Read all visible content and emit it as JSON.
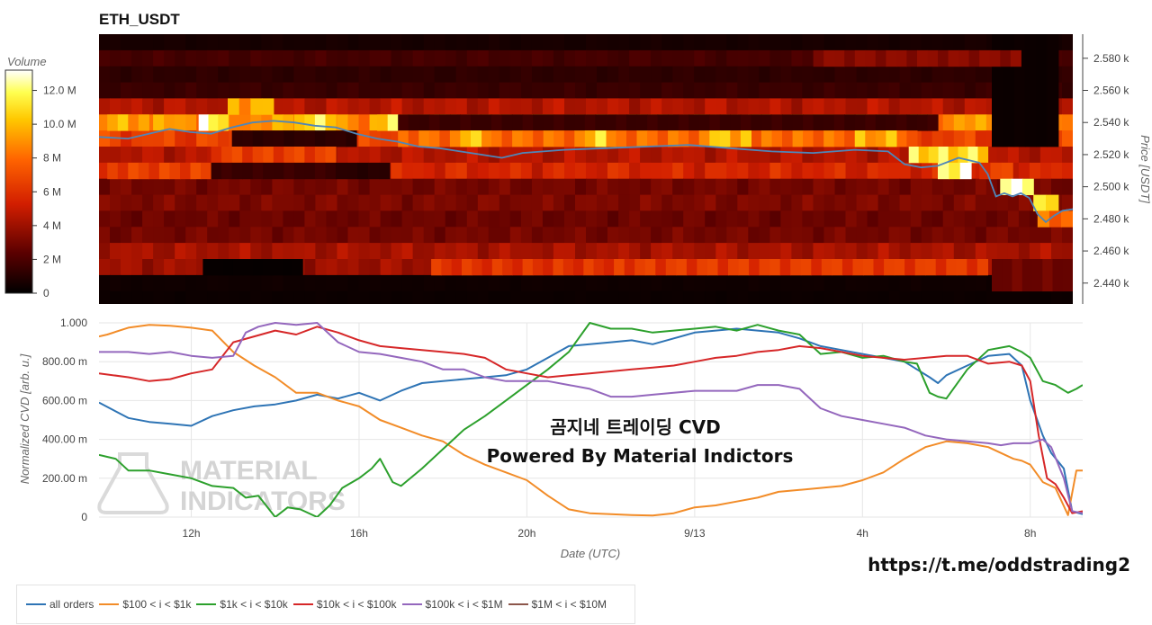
{
  "colors": {
    "all_orders": "#2e74b5",
    "b100_1k": "#f28c28",
    "b1k_10k": "#2ca02c",
    "b10k_100k": "#d62728",
    "b100k_1m": "#9467bd",
    "b1m_10m": "#8c564b",
    "price_line": "#4f86b8"
  },
  "watermark": {
    "text_line1": "곰지네 트레이딩 CVD",
    "text_line2": "Powered By Material Indictors",
    "logo_line1": "MATERIAL",
    "logo_line2": "INDICATORS",
    "url": "https://t.me/oddstrading2"
  },
  "chart_data": [
    {
      "type": "heatmap",
      "title": "ETH_USDT",
      "ylabel": "Price [USDT]",
      "ylim": [
        2427,
        2595
      ],
      "y_ticks": [
        {
          "value": 2580,
          "label": "2.580 k"
        },
        {
          "value": 2560,
          "label": "2.560 k"
        },
        {
          "value": 2540,
          "label": "2.540 k"
        },
        {
          "value": 2520,
          "label": "2.520 k"
        },
        {
          "value": 2500,
          "label": "2.500 k"
        },
        {
          "value": 2480,
          "label": "2.480 k"
        },
        {
          "value": 2460,
          "label": "2.460 k"
        },
        {
          "value": 2440,
          "label": "2.440 k"
        }
      ],
      "x_range_hours": [
        9.8,
        33.25
      ],
      "colorbar": {
        "title": "Volume",
        "range": [
          0,
          13.2
        ],
        "ticks": [
          {
            "value": 0,
            "label": "0"
          },
          {
            "value": 2,
            "label": "2 M"
          },
          {
            "value": 4,
            "label": "4 M"
          },
          {
            "value": 6,
            "label": "6 M"
          },
          {
            "value": 8,
            "label": "8 M"
          },
          {
            "value": 10,
            "label": "10.0 M"
          },
          {
            "value": 12,
            "label": "12.0 M"
          }
        ]
      },
      "bands": [
        {
          "y0": 2585,
          "y1": 2595,
          "v": 0.6
        },
        {
          "y0": 2575,
          "y1": 2585,
          "v": 1.8
        },
        {
          "y0": 2565,
          "y1": 2575,
          "v": 1.2
        },
        {
          "y0": 2555,
          "y1": 2565,
          "v": 1.5
        },
        {
          "y0": 2545,
          "y1": 2555,
          "v": 4.5
        },
        {
          "y0": 2535,
          "y1": 2545,
          "v": 9.0
        },
        {
          "y0": 2525,
          "y1": 2535,
          "v": 6.5
        },
        {
          "y0": 2515,
          "y1": 2525,
          "v": 4.5
        },
        {
          "y0": 2505,
          "y1": 2515,
          "v": 5.5
        },
        {
          "y0": 2495,
          "y1": 2505,
          "v": 3.0
        },
        {
          "y0": 2485,
          "y1": 2495,
          "v": 3.2
        },
        {
          "y0": 2475,
          "y1": 2485,
          "v": 2.8
        },
        {
          "y0": 2465,
          "y1": 2475,
          "v": 3.0
        },
        {
          "y0": 2455,
          "y1": 2465,
          "v": 4.2
        },
        {
          "y0": 2445,
          "y1": 2455,
          "v": 4.0
        },
        {
          "y0": 2435,
          "y1": 2445,
          "v": 0.4
        },
        {
          "y0": 2427,
          "y1": 2435,
          "v": 0.3
        }
      ],
      "patches": [
        {
          "x0": 10.0,
          "x1": 11.0,
          "y0": 2535,
          "y1": 2545,
          "v": 9.5
        },
        {
          "x0": 12.2,
          "x1": 12.9,
          "y0": 2535,
          "y1": 2545,
          "v": 12.0
        },
        {
          "x0": 12.9,
          "x1": 14.0,
          "y0": 2545,
          "y1": 2555,
          "v": 9.5
        },
        {
          "x0": 14.5,
          "x1": 15.5,
          "y0": 2535,
          "y1": 2545,
          "v": 11.0
        },
        {
          "x0": 16.5,
          "x1": 17.0,
          "y0": 2535,
          "y1": 2545,
          "v": 11.0
        },
        {
          "x0": 13.0,
          "x1": 16.0,
          "y0": 2525,
          "y1": 2535,
          "v": 1.2
        },
        {
          "x0": 17.0,
          "x1": 30.0,
          "y0": 2535,
          "y1": 2545,
          "v": 1.5
        },
        {
          "x0": 17.0,
          "x1": 29.5,
          "y0": 2525,
          "y1": 2535,
          "v": 8.0
        },
        {
          "x0": 18.5,
          "x1": 19.0,
          "y0": 2525,
          "y1": 2535,
          "v": 11.0
        },
        {
          "x0": 21.5,
          "x1": 22.0,
          "y0": 2525,
          "y1": 2535,
          "v": 10.5
        },
        {
          "x0": 24.5,
          "x1": 25.5,
          "y0": 2525,
          "y1": 2535,
          "v": 10.0
        },
        {
          "x0": 28.0,
          "x1": 29.0,
          "y0": 2525,
          "y1": 2535,
          "v": 9.5
        },
        {
          "x0": 10.0,
          "x1": 12.5,
          "y0": 2505,
          "y1": 2515,
          "v": 6.5
        },
        {
          "x0": 12.5,
          "x1": 15.5,
          "y0": 2515,
          "y1": 2525,
          "v": 6.5
        },
        {
          "x0": 12.5,
          "x1": 15.5,
          "y0": 2505,
          "y1": 2515,
          "v": 1.5
        },
        {
          "x0": 15.5,
          "x1": 16.8,
          "y0": 2505,
          "y1": 2515,
          "v": 1.0
        },
        {
          "x0": 29.3,
          "x1": 31.2,
          "y0": 2515,
          "y1": 2525,
          "v": 11.0
        },
        {
          "x0": 30.0,
          "x1": 30.8,
          "y0": 2505,
          "y1": 2515,
          "v": 12.5
        },
        {
          "x0": 31.0,
          "x1": 31.8,
          "y0": 2505,
          "y1": 2515,
          "v": 6.5
        },
        {
          "x0": 31.5,
          "x1": 32.3,
          "y0": 2495,
          "y1": 2505,
          "v": 13.0
        },
        {
          "x0": 32.3,
          "x1": 32.9,
          "y0": 2485,
          "y1": 2495,
          "v": 10.5
        },
        {
          "x0": 32.4,
          "x1": 33.25,
          "y0": 2475,
          "y1": 2485,
          "v": 8.0
        },
        {
          "x0": 31.3,
          "x1": 32.9,
          "y0": 2525,
          "y1": 2595,
          "v": 0.3
        },
        {
          "x0": 27.0,
          "x1": 32.0,
          "y0": 2575,
          "y1": 2585,
          "v": 3.5
        },
        {
          "x0": 12.3,
          "x1": 14.7,
          "y0": 2445,
          "y1": 2455,
          "v": 0.15
        },
        {
          "x0": 17.8,
          "x1": 22.2,
          "y0": 2445,
          "y1": 2455,
          "v": 6.0
        },
        {
          "x0": 22.2,
          "x1": 31.2,
          "y0": 2445,
          "y1": 2455,
          "v": 6.3
        },
        {
          "x0": 31.3,
          "x1": 33.25,
          "y0": 2435,
          "y1": 2455,
          "v": 2.8
        }
      ],
      "price_series": {
        "x": [
          9.8,
          10.5,
          11.0,
          11.5,
          12.0,
          12.5,
          13.0,
          13.5,
          14.0,
          14.5,
          15.0,
          15.5,
          16.0,
          16.5,
          17.0,
          17.5,
          18.0,
          18.5,
          19.0,
          19.5,
          20.0,
          21.0,
          22.0,
          23.0,
          24.0,
          25.0,
          26.0,
          27.0,
          28.0,
          28.8,
          29.2,
          29.6,
          30.0,
          30.5,
          31.0,
          31.2,
          31.4,
          31.6,
          31.8,
          32.0,
          32.2,
          32.4,
          32.6,
          32.8,
          33.0,
          33.25
        ],
        "y": [
          2531,
          2530,
          2533,
          2536,
          2534,
          2533,
          2537,
          2540,
          2541,
          2540,
          2538,
          2537,
          2533,
          2530,
          2528,
          2525,
          2524,
          2522,
          2520,
          2518,
          2521,
          2523,
          2524,
          2525,
          2526,
          2524,
          2522,
          2521,
          2523,
          2522,
          2514,
          2512,
          2513,
          2518,
          2515,
          2508,
          2494,
          2496,
          2494,
          2496,
          2493,
          2483,
          2478,
          2482,
          2485,
          2486
        ]
      }
    },
    {
      "type": "line",
      "xlabel": "Date (UTC)",
      "ylabel": "Normalized CVD [arb. u.]",
      "ylim": [
        0,
        1000
      ],
      "x_range_hours": [
        9.8,
        33.25
      ],
      "y_ticks": [
        {
          "value": 0,
          "label": "0"
        },
        {
          "value": 200,
          "label": "200.00 m"
        },
        {
          "value": 400,
          "label": "400.00 m"
        },
        {
          "value": 600,
          "label": "600.00 m"
        },
        {
          "value": 800,
          "label": "800.00 m"
        },
        {
          "value": 1000,
          "label": "1.000"
        }
      ],
      "x_ticks": [
        {
          "value": 12,
          "label": "12h"
        },
        {
          "value": 16,
          "label": "16h"
        },
        {
          "value": 20,
          "label": "20h"
        },
        {
          "value": 24,
          "label": "9/13"
        },
        {
          "value": 28,
          "label": "4h"
        },
        {
          "value": 32,
          "label": "8h"
        }
      ],
      "series": [
        {
          "name": "all orders",
          "color": "#2e74b5",
          "x": [
            9.8,
            10.5,
            11.0,
            11.5,
            12.0,
            12.5,
            13.0,
            13.5,
            14.0,
            14.5,
            15.0,
            15.5,
            16.0,
            16.5,
            17.0,
            17.5,
            18.0,
            18.5,
            19.0,
            19.5,
            20.0,
            20.5,
            21.0,
            21.5,
            22.0,
            22.5,
            23.0,
            23.5,
            24.0,
            25.0,
            26.0,
            26.5,
            27.0,
            27.5,
            28.0,
            28.5,
            29.0,
            29.3,
            29.6,
            29.8,
            30.0,
            30.5,
            31.0,
            31.5,
            31.8,
            32.0,
            32.3,
            32.5,
            32.8,
            33.0,
            33.25
          ],
          "y": [
            590,
            510,
            490,
            480,
            470,
            520,
            550,
            570,
            580,
            600,
            630,
            610,
            640,
            600,
            650,
            690,
            700,
            710,
            720,
            730,
            760,
            820,
            880,
            890,
            900,
            910,
            890,
            920,
            950,
            970,
            950,
            920,
            880,
            860,
            840,
            820,
            800,
            760,
            720,
            690,
            730,
            780,
            830,
            840,
            780,
            600,
            420,
            330,
            250,
            30,
            15
          ]
        },
        {
          "name": "$100 < i < $1k",
          "color": "#f28c28",
          "x": [
            9.8,
            10.0,
            10.5,
            11.0,
            11.5,
            12.0,
            12.5,
            13.0,
            13.5,
            14.0,
            14.5,
            15.0,
            15.5,
            16.0,
            16.5,
            17.0,
            17.5,
            18.0,
            18.5,
            19.0,
            19.5,
            20.0,
            20.5,
            21.0,
            21.5,
            22.0,
            22.5,
            23.0,
            23.5,
            24.0,
            24.5,
            25.0,
            25.5,
            26.0,
            26.5,
            27.0,
            27.5,
            28.0,
            28.5,
            29.0,
            29.5,
            30.0,
            30.5,
            31.0,
            31.3,
            31.6,
            31.8,
            32.0,
            32.3,
            32.6,
            32.9,
            33.1,
            33.25
          ],
          "y": [
            930,
            940,
            975,
            990,
            985,
            975,
            960,
            850,
            780,
            720,
            640,
            640,
            600,
            570,
            500,
            460,
            420,
            390,
            320,
            270,
            230,
            190,
            110,
            40,
            20,
            15,
            10,
            8,
            20,
            50,
            60,
            80,
            100,
            130,
            140,
            150,
            160,
            190,
            230,
            300,
            360,
            390,
            380,
            360,
            330,
            300,
            290,
            270,
            180,
            150,
            10,
            240,
            240
          ]
        },
        {
          "name": "$1k < i < $10k",
          "color": "#2ca02c",
          "x": [
            9.8,
            10.2,
            10.5,
            11.0,
            11.5,
            12.0,
            12.5,
            13.0,
            13.3,
            13.6,
            14.0,
            14.3,
            14.6,
            15.0,
            15.3,
            15.6,
            16.0,
            16.3,
            16.5,
            16.8,
            17.0,
            17.5,
            18.0,
            18.5,
            19.0,
            19.5,
            20.0,
            20.5,
            21.0,
            21.5,
            22.0,
            22.5,
            23.0,
            23.5,
            24.0,
            24.5,
            25.0,
            25.5,
            26.0,
            26.5,
            27.0,
            27.5,
            28.0,
            28.5,
            29.0,
            29.3,
            29.6,
            29.8,
            30.0,
            30.5,
            31.0,
            31.5,
            31.8,
            32.0,
            32.3,
            32.6,
            32.9,
            33.1,
            33.25
          ],
          "y": [
            320,
            300,
            240,
            240,
            220,
            200,
            160,
            150,
            100,
            110,
            0,
            50,
            40,
            0,
            60,
            150,
            200,
            250,
            300,
            180,
            160,
            250,
            350,
            450,
            520,
            600,
            680,
            760,
            850,
            1000,
            970,
            970,
            950,
            960,
            970,
            980,
            960,
            990,
            960,
            940,
            840,
            850,
            820,
            830,
            800,
            790,
            640,
            620,
            610,
            760,
            860,
            880,
            850,
            820,
            700,
            680,
            640,
            660,
            680
          ]
        },
        {
          "name": "$10k < i < $100k",
          "color": "#d62728",
          "x": [
            9.8,
            10.5,
            11.0,
            11.5,
            12.0,
            12.5,
            13.0,
            13.5,
            14.0,
            14.5,
            15.0,
            15.5,
            16.0,
            16.5,
            17.0,
            17.5,
            18.0,
            18.5,
            19.0,
            19.5,
            20.0,
            20.5,
            21.0,
            21.5,
            22.0,
            22.5,
            23.0,
            23.5,
            24.0,
            24.5,
            25.0,
            25.5,
            26.0,
            26.5,
            27.0,
            27.5,
            28.0,
            28.5,
            29.0,
            29.5,
            30.0,
            30.5,
            31.0,
            31.5,
            31.8,
            32.0,
            32.2,
            32.4,
            32.6,
            32.8,
            33.0,
            33.25
          ],
          "y": [
            740,
            720,
            700,
            710,
            740,
            760,
            900,
            930,
            960,
            940,
            980,
            950,
            910,
            880,
            870,
            860,
            850,
            840,
            820,
            760,
            740,
            720,
            730,
            740,
            750,
            760,
            770,
            780,
            800,
            820,
            830,
            850,
            860,
            880,
            870,
            850,
            830,
            820,
            810,
            820,
            830,
            830,
            790,
            800,
            780,
            700,
            420,
            200,
            170,
            100,
            20,
            30
          ]
        },
        {
          "name": "$100k < i < $1M",
          "color": "#9467bd",
          "x": [
            9.8,
            10.5,
            11.0,
            11.5,
            12.0,
            12.5,
            13.0,
            13.3,
            13.6,
            14.0,
            14.5,
            15.0,
            15.5,
            16.0,
            16.5,
            17.0,
            17.5,
            18.0,
            18.5,
            19.0,
            19.5,
            20.0,
            20.5,
            21.0,
            21.5,
            22.0,
            22.5,
            23.0,
            23.5,
            24.0,
            24.5,
            25.0,
            25.5,
            26.0,
            26.5,
            27.0,
            27.5,
            28.0,
            28.5,
            29.0,
            29.5,
            30.0,
            30.5,
            31.0,
            31.3,
            31.6,
            31.8,
            32.0,
            32.3,
            32.5,
            32.8,
            33.0,
            33.25
          ],
          "y": [
            850,
            850,
            840,
            850,
            830,
            820,
            830,
            950,
            980,
            1000,
            990,
            1000,
            900,
            850,
            840,
            820,
            800,
            760,
            760,
            720,
            700,
            700,
            700,
            680,
            660,
            620,
            620,
            630,
            640,
            650,
            650,
            650,
            680,
            680,
            660,
            560,
            520,
            500,
            480,
            460,
            420,
            400,
            390,
            380,
            370,
            380,
            380,
            380,
            400,
            360,
            200,
            30,
            20
          ]
        },
        {
          "name": "$1M < i < $10M",
          "color": "#8c564b",
          "x": [],
          "y": []
        }
      ]
    }
  ]
}
